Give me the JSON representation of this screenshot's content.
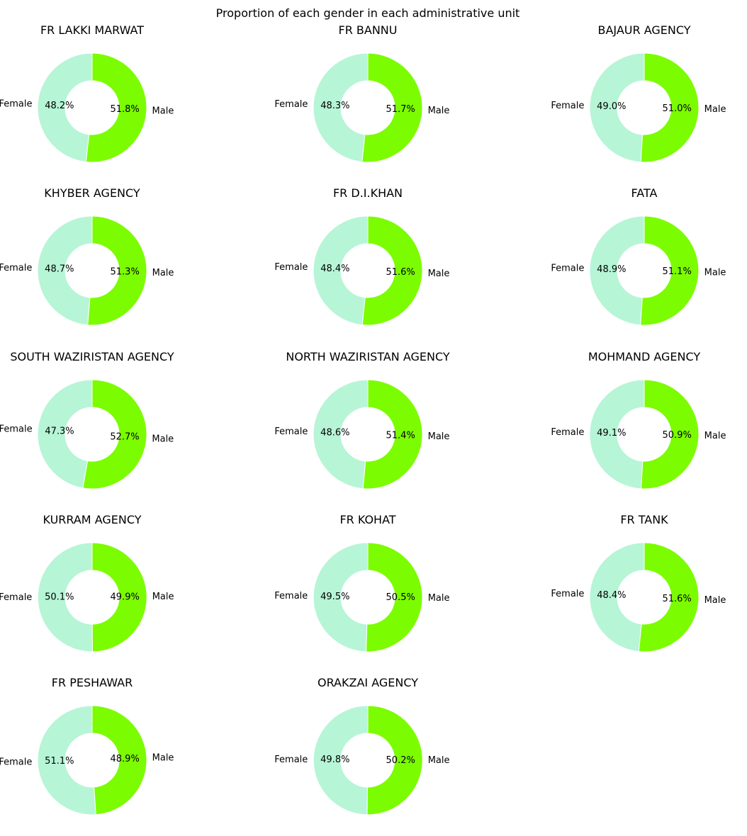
{
  "chart_data": {
    "type": "pie",
    "title": "Proportion of each gender in each administrative unit",
    "colors": {
      "Male": "#7cfc00",
      "Female": "#b6f5d6",
      "edge": "#ffffff",
      "background": "#ffffff",
      "text": "#000000"
    },
    "style": "donut",
    "label_names": [
      "Female",
      "Male"
    ],
    "panels": [
      {
        "title": "FR LAKKI MARWAT",
        "slices": [
          {
            "label": "Female",
            "pct": 48.2,
            "text": "48.2%"
          },
          {
            "label": "Male",
            "pct": 51.8,
            "text": "51.8%"
          }
        ]
      },
      {
        "title": "FR BANNU",
        "slices": [
          {
            "label": "Female",
            "pct": 48.3,
            "text": "48.3%"
          },
          {
            "label": "Male",
            "pct": 51.7,
            "text": "51.7%"
          }
        ]
      },
      {
        "title": "BAJAUR AGENCY",
        "slices": [
          {
            "label": "Female",
            "pct": 49.0,
            "text": "49.0%"
          },
          {
            "label": "Male",
            "pct": 51.0,
            "text": "51.0%"
          }
        ]
      },
      {
        "title": "KHYBER AGENCY",
        "slices": [
          {
            "label": "Female",
            "pct": 48.7,
            "text": "48.7%"
          },
          {
            "label": "Male",
            "pct": 51.3,
            "text": "51.3%"
          }
        ]
      },
      {
        "title": "FR D.I.KHAN",
        "slices": [
          {
            "label": "Female",
            "pct": 48.4,
            "text": "48.4%"
          },
          {
            "label": "Male",
            "pct": 51.6,
            "text": "51.6%"
          }
        ]
      },
      {
        "title": "FATA",
        "slices": [
          {
            "label": "Female",
            "pct": 48.9,
            "text": "48.9%"
          },
          {
            "label": "Male",
            "pct": 51.1,
            "text": "51.1%"
          }
        ]
      },
      {
        "title": "SOUTH WAZIRISTAN AGENCY",
        "slices": [
          {
            "label": "Female",
            "pct": 47.3,
            "text": "47.3%"
          },
          {
            "label": "Male",
            "pct": 52.7,
            "text": "52.7%"
          }
        ]
      },
      {
        "title": "NORTH WAZIRISTAN AGENCY",
        "slices": [
          {
            "label": "Female",
            "pct": 48.6,
            "text": "48.6%"
          },
          {
            "label": "Male",
            "pct": 51.4,
            "text": "51.4%"
          }
        ]
      },
      {
        "title": "MOHMAND AGENCY",
        "slices": [
          {
            "label": "Female",
            "pct": 49.1,
            "text": "49.1%"
          },
          {
            "label": "Male",
            "pct": 50.9,
            "text": "50.9%"
          }
        ]
      },
      {
        "title": "KURRAM AGENCY",
        "slices": [
          {
            "label": "Female",
            "pct": 50.1,
            "text": "50.1%"
          },
          {
            "label": "Male",
            "pct": 49.9,
            "text": "49.9%"
          }
        ]
      },
      {
        "title": "FR KOHAT",
        "slices": [
          {
            "label": "Female",
            "pct": 49.5,
            "text": "49.5%"
          },
          {
            "label": "Male",
            "pct": 50.5,
            "text": "50.5%"
          }
        ]
      },
      {
        "title": "FR TANK",
        "slices": [
          {
            "label": "Female",
            "pct": 48.4,
            "text": "48.4%"
          },
          {
            "label": "Male",
            "pct": 51.6,
            "text": "51.6%"
          }
        ]
      },
      {
        "title": "FR PESHAWAR",
        "slices": [
          {
            "label": "Female",
            "pct": 51.1,
            "text": "51.1%"
          },
          {
            "label": "Male",
            "pct": 48.9,
            "text": "48.9%"
          }
        ]
      },
      {
        "title": "ORAKZAI AGENCY",
        "slices": [
          {
            "label": "Female",
            "pct": 49.8,
            "text": "49.8%"
          },
          {
            "label": "Male",
            "pct": 50.2,
            "text": "50.2%"
          }
        ]
      }
    ]
  }
}
